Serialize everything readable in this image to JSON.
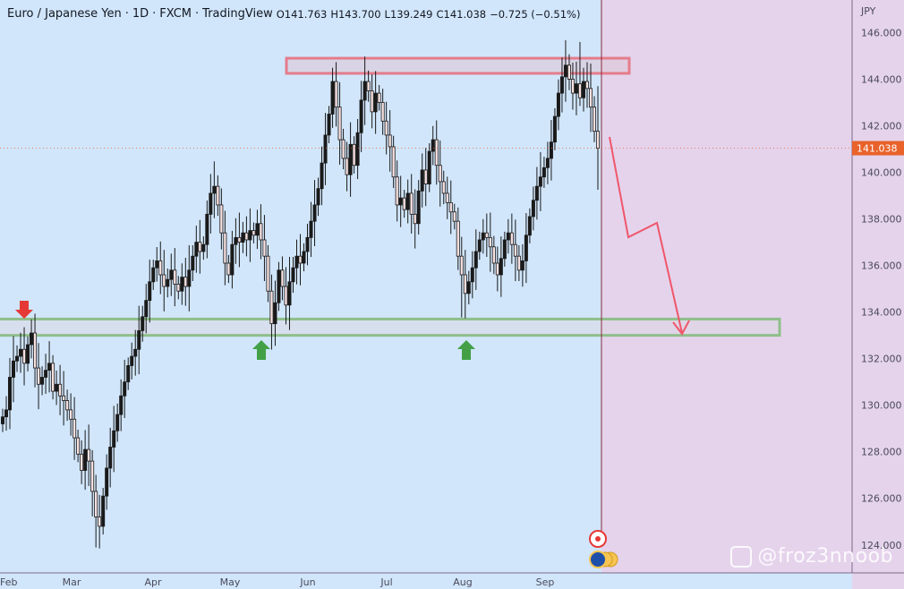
{
  "header": {
    "symbol": "Euro / Japanese Yen",
    "interval": "1D",
    "exchange": "FXCM",
    "platform": "TradingView",
    "open": "O141.763",
    "high": "H143.700",
    "low": "L139.249",
    "close": "C141.038",
    "change": "−0.725 (−0.51%)"
  },
  "watermark": "@froz3nnoob",
  "colors": {
    "background": "#d1e6fb",
    "future_region": "#e5d3ec",
    "candle": "#1a1a1a",
    "bear_candle": "#b74b4b",
    "resistance": "#e57c8b",
    "support": "#8fbf8a",
    "arrow_down": "#e53935",
    "arrow_up": "#43a047",
    "projection": "#f0566a",
    "price_label_bg": "#e8622a"
  },
  "chart_data": {
    "type": "candlestick",
    "title": "Euro / Japanese Yen · 1D · FXCM",
    "y_axis_unit": "JPY",
    "ylim": [
      122.8,
      147.4
    ],
    "yticks": [
      "146.000",
      "144.000",
      "142.000",
      "140.000",
      "138.000",
      "136.000",
      "134.000",
      "132.000",
      "130.000",
      "128.000",
      "126.000",
      "124.000"
    ],
    "xticks": [
      "Feb",
      "Mar",
      "Apr",
      "May",
      "Jun",
      "Jul",
      "Aug",
      "Sep"
    ],
    "last_price_label": "141.038",
    "last_bar": {
      "open": 141.763,
      "high": 143.7,
      "low": 139.249,
      "close": 141.038
    },
    "series_close": [
      129.5,
      129.8,
      131.2,
      131.9,
      132.1,
      132.4,
      131.8,
      132.6,
      133.1,
      131.6,
      130.9,
      131.2,
      131.5,
      131.8,
      130.6,
      130.9,
      130.4,
      130.2,
      129.8,
      129.4,
      128.6,
      127.9,
      127.2,
      128.1,
      127.6,
      126.3,
      125.2,
      124.8,
      126.1,
      127.3,
      128.2,
      128.9,
      129.6,
      130.4,
      131.0,
      131.7,
      132.1,
      132.4,
      133.2,
      133.8,
      134.5,
      135.3,
      135.9,
      136.2,
      135.6,
      135.1,
      135.4,
      135.8,
      135.2,
      134.9,
      135.5,
      135.1,
      135.8,
      136.4,
      137.0,
      136.6,
      136.9,
      138.2,
      139.1,
      139.4,
      138.6,
      137.4,
      136.1,
      135.6,
      136.9,
      137.2,
      137.0,
      137.4,
      137.1,
      137.5,
      137.3,
      137.8,
      137.1,
      136.4,
      134.9,
      133.5,
      134.4,
      135.8,
      135.1,
      134.3,
      135.3,
      135.9,
      136.4,
      136.1,
      136.6,
      137.2,
      137.9,
      138.6,
      139.3,
      140.4,
      141.6,
      142.5,
      143.9,
      142.8,
      141.4,
      140.6,
      139.9,
      141.2,
      140.3,
      141.7,
      143.1,
      143.9,
      143.5,
      142.6,
      143.4,
      143.0,
      142.2,
      141.6,
      141.1,
      139.8,
      138.6,
      138.9,
      138.4,
      139.1,
      138.2,
      137.8,
      139.2,
      140.1,
      139.5,
      140.9,
      141.4,
      140.3,
      139.6,
      139.1,
      138.7,
      138.3,
      137.9,
      136.4,
      135.6,
      134.8,
      135.3,
      135.9,
      136.6,
      137.1,
      137.4,
      137.2,
      136.8,
      136.1,
      135.6,
      136.3,
      137.1,
      137.4,
      136.9,
      136.4,
      135.8,
      136.2,
      137.3,
      138.1,
      138.8,
      139.4,
      139.8,
      140.2,
      140.6,
      141.3,
      142.4,
      143.4,
      144.1,
      144.6,
      144.0,
      143.4,
      143.8,
      143.2,
      143.9,
      143.6,
      142.8,
      141.763,
      141.038
    ],
    "annotations": {
      "resistance_zone": [
        144.25,
        144.9
      ],
      "support_zone": [
        133.0,
        133.7
      ],
      "projection_path": [
        [
          142.0
        ],
        [
          137.4
        ],
        [
          138.0
        ],
        [
          133.0
        ]
      ],
      "down_arrow": "Feb top marker",
      "up_arrows": [
        "May low",
        "Aug low"
      ]
    }
  }
}
